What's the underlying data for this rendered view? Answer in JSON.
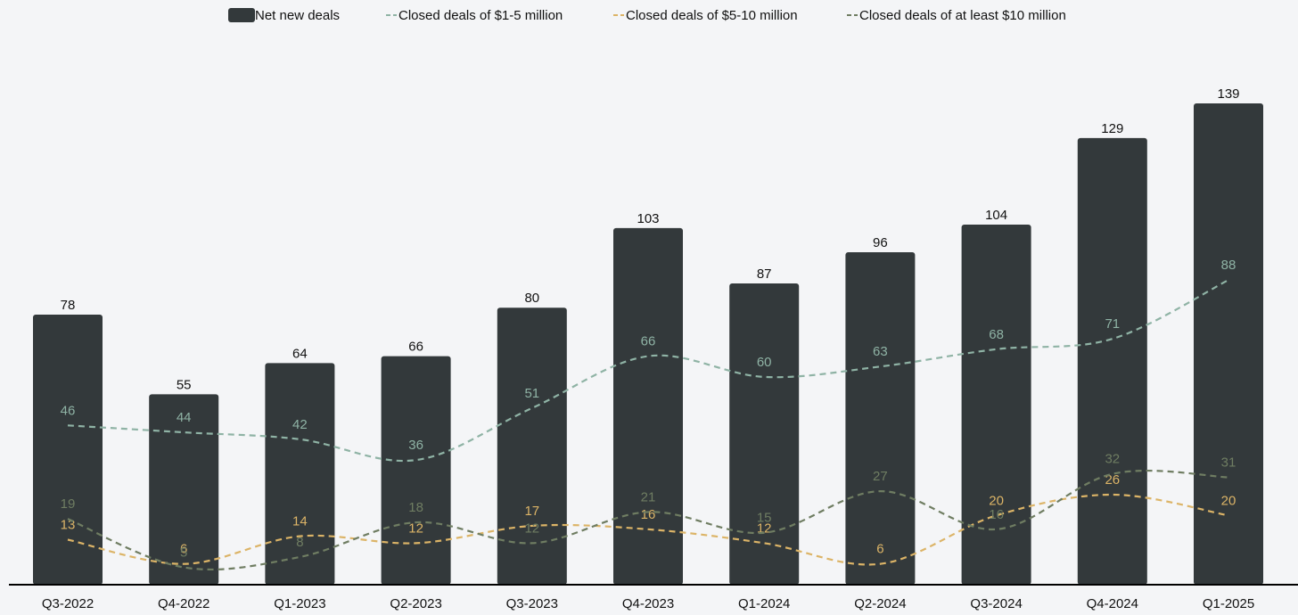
{
  "chart_data": {
    "type": "bar",
    "title": "",
    "xlabel": "",
    "ylabel": "",
    "ylim": [
      0,
      160
    ],
    "grid": false,
    "legend_position": "top-center",
    "categories": [
      "Q3-2022",
      "Q4-2022",
      "Q1-2023",
      "Q2-2023",
      "Q3-2023",
      "Q4-2023",
      "Q1-2024",
      "Q2-2024",
      "Q3-2024",
      "Q4-2024",
      "Q1-2025"
    ],
    "series": [
      {
        "name": "Net new deals",
        "kind": "bar",
        "color": "#33393b",
        "values": [
          78,
          55,
          64,
          66,
          80,
          103,
          87,
          96,
          104,
          129,
          139
        ]
      },
      {
        "name": "Closed deals of $1-5 million",
        "kind": "line",
        "color": "#8fb3a5",
        "values": [
          46,
          44,
          42,
          36,
          51,
          66,
          60,
          63,
          68,
          71,
          88
        ]
      },
      {
        "name": "Closed deals of $5-10 million",
        "kind": "line",
        "color": "#dcb467",
        "values": [
          13,
          6,
          14,
          12,
          17,
          16,
          12,
          6,
          20,
          26,
          20
        ]
      },
      {
        "name": "Closed deals of at least $10 million",
        "kind": "line",
        "color": "#6f7d62",
        "values": [
          19,
          5,
          8,
          18,
          12,
          21,
          15,
          27,
          16,
          32,
          31
        ]
      }
    ]
  }
}
